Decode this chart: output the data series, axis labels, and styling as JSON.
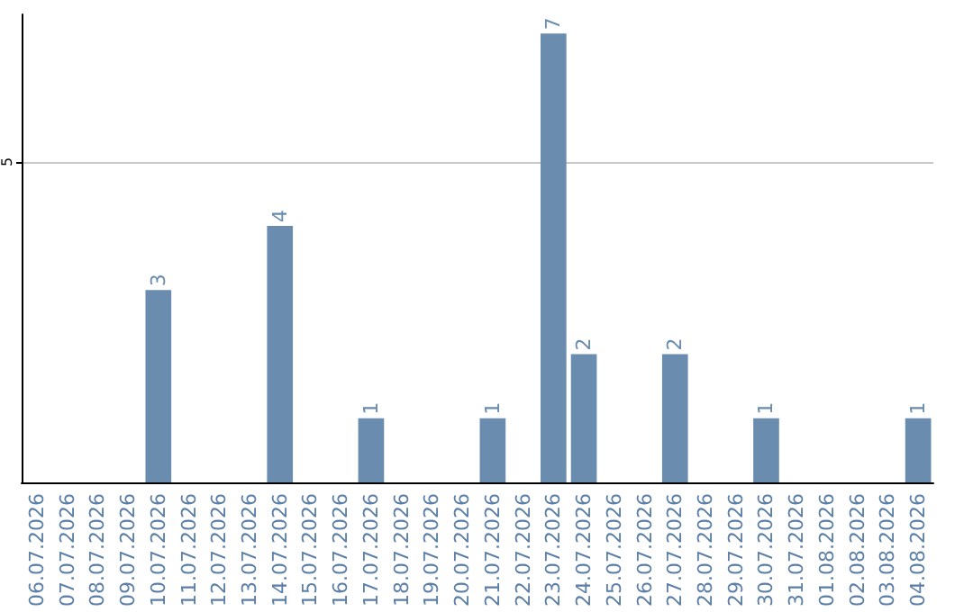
{
  "chart_data": {
    "type": "bar",
    "categories": [
      "06.07.2026",
      "07.07.2026",
      "08.07.2026",
      "09.07.2026",
      "10.07.2026",
      "11.07.2026",
      "12.07.2026",
      "13.07.2026",
      "14.07.2026",
      "15.07.2026",
      "16.07.2026",
      "17.07.2026",
      "18.07.2026",
      "19.07.2026",
      "20.07.2026",
      "21.07.2026",
      "22.07.2026",
      "23.07.2026",
      "24.07.2026",
      "25.07.2026",
      "26.07.2026",
      "27.07.2026",
      "28.07.2026",
      "29.07.2026",
      "30.07.2026",
      "31.07.2026",
      "01.08.2026",
      "02.08.2026",
      "03.08.2026",
      "04.08.2026"
    ],
    "values": [
      0,
      0,
      0,
      0,
      3,
      0,
      0,
      0,
      4,
      0,
      0,
      1,
      0,
      0,
      0,
      1,
      0,
      7,
      2,
      0,
      0,
      2,
      0,
      0,
      1,
      0,
      0,
      0,
      0,
      1
    ],
    "value_labels": [
      null,
      null,
      null,
      null,
      "3",
      null,
      null,
      null,
      "4",
      null,
      null,
      "1",
      null,
      null,
      null,
      "1",
      null,
      "7",
      "2",
      null,
      null,
      "2",
      null,
      null,
      "1",
      null,
      null,
      null,
      null,
      "1"
    ],
    "color": "#6a8caf",
    "ylim": [
      0,
      7.3
    ],
    "yticks": [
      5
    ],
    "grid": "y"
  }
}
